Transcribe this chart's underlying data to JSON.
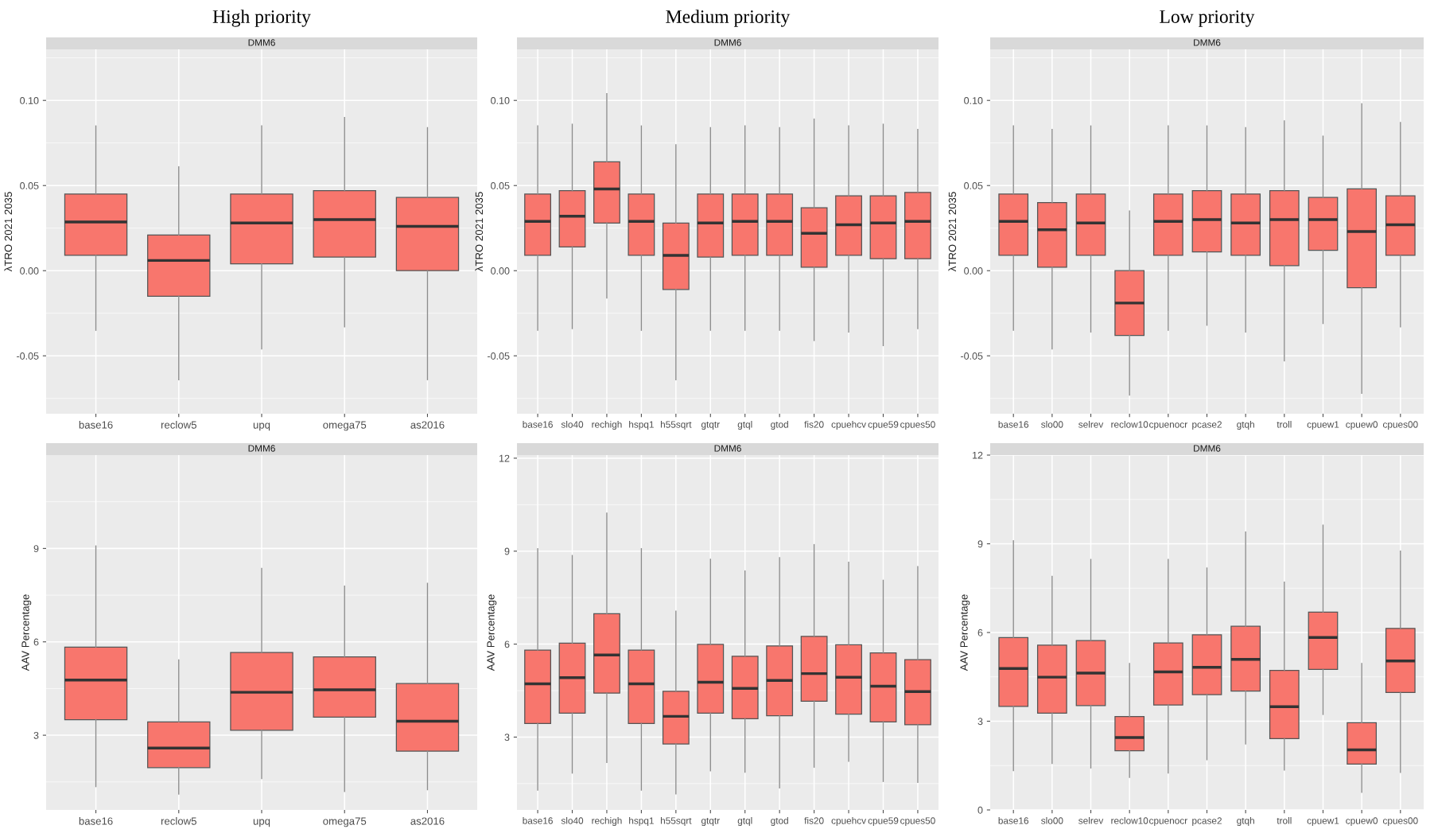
{
  "chart_data": [
    {
      "type": "box",
      "title": "High priority",
      "subtitle": "DMM6",
      "ylabel": "λTRO 2021 2035",
      "ylim": [
        -0.084,
        0.13
      ],
      "yticks": [
        {
          "value": -0.05,
          "label": "-0.05"
        },
        {
          "value": 0,
          "label": "0.00"
        },
        {
          "value": 0.05,
          "label": "0.05"
        },
        {
          "value": 0.1,
          "label": "0.10"
        }
      ],
      "grid": true,
      "color": "#f8766d",
      "categories": [
        "base16",
        "reclow5",
        "upq",
        "omega75",
        "as2016"
      ],
      "boxes": [
        {
          "low": -0.035,
          "q1": 0.009,
          "median": 0.0286,
          "q3": 0.045,
          "high": 0.085
        },
        {
          "low": -0.064,
          "q1": -0.015,
          "median": 0.006,
          "q3": 0.021,
          "high": 0.061
        },
        {
          "low": -0.046,
          "q1": 0.004,
          "median": 0.028,
          "q3": 0.045,
          "high": 0.085
        },
        {
          "low": -0.033,
          "q1": 0.008,
          "median": 0.03,
          "q3": 0.047,
          "high": 0.09
        },
        {
          "low": -0.064,
          "q1": 0.0,
          "median": 0.026,
          "q3": 0.043,
          "high": 0.084
        }
      ]
    },
    {
      "type": "box",
      "title": "Medium priority",
      "subtitle": "DMM6",
      "ylabel": "λTRO 2021 2035",
      "ylim": [
        -0.084,
        0.13
      ],
      "yticks": [
        {
          "value": -0.05,
          "label": "-0.05"
        },
        {
          "value": 0,
          "label": "0.00"
        },
        {
          "value": 0.05,
          "label": "0.05"
        },
        {
          "value": 0.1,
          "label": "0.10"
        }
      ],
      "grid": true,
      "color": "#f8766d",
      "categories": [
        "base16",
        "slo40",
        "rechigh",
        "hspq1",
        "h55sqrt",
        "gtqtr",
        "gtql",
        "gtod",
        "fis20",
        "cpuehcv",
        "cpue59",
        "cpues50"
      ],
      "boxes": [
        {
          "low": -0.035,
          "q1": 0.009,
          "median": 0.029,
          "q3": 0.045,
          "high": 0.085
        },
        {
          "low": -0.034,
          "q1": 0.014,
          "median": 0.032,
          "q3": 0.047,
          "high": 0.086
        },
        {
          "low": -0.016,
          "q1": 0.028,
          "median": 0.048,
          "q3": 0.064,
          "high": 0.104
        },
        {
          "low": -0.035,
          "q1": 0.009,
          "median": 0.029,
          "q3": 0.045,
          "high": 0.085
        },
        {
          "low": -0.064,
          "q1": -0.011,
          "median": 0.009,
          "q3": 0.028,
          "high": 0.074
        },
        {
          "low": -0.035,
          "q1": 0.008,
          "median": 0.028,
          "q3": 0.045,
          "high": 0.084
        },
        {
          "low": -0.035,
          "q1": 0.009,
          "median": 0.029,
          "q3": 0.045,
          "high": 0.085
        },
        {
          "low": -0.035,
          "q1": 0.009,
          "median": 0.029,
          "q3": 0.045,
          "high": 0.084
        },
        {
          "low": -0.041,
          "q1": 0.002,
          "median": 0.022,
          "q3": 0.037,
          "high": 0.089
        },
        {
          "low": -0.036,
          "q1": 0.009,
          "median": 0.027,
          "q3": 0.044,
          "high": 0.085
        },
        {
          "low": -0.044,
          "q1": 0.007,
          "median": 0.028,
          "q3": 0.044,
          "high": 0.086
        },
        {
          "low": -0.034,
          "q1": 0.007,
          "median": 0.029,
          "q3": 0.046,
          "high": 0.083
        }
      ]
    },
    {
      "type": "box",
      "title": "Low priority",
      "subtitle": "DMM6",
      "ylabel": "λTRO 2021 2035",
      "ylim": [
        -0.084,
        0.13
      ],
      "yticks": [
        {
          "value": -0.05,
          "label": "-0.05"
        },
        {
          "value": 0,
          "label": "0.00"
        },
        {
          "value": 0.05,
          "label": "0.05"
        },
        {
          "value": 0.1,
          "label": "0.10"
        }
      ],
      "grid": true,
      "color": "#f8766d",
      "categories": [
        "base16",
        "slo00",
        "selrev",
        "reclow10",
        "cpuenocr",
        "pcase2",
        "gtqh",
        "troll",
        "cpuew1",
        "cpuew0",
        "cpues00"
      ],
      "boxes": [
        {
          "low": -0.035,
          "q1": 0.009,
          "median": 0.029,
          "q3": 0.045,
          "high": 0.085
        },
        {
          "low": -0.046,
          "q1": 0.002,
          "median": 0.024,
          "q3": 0.04,
          "high": 0.083
        },
        {
          "low": -0.036,
          "q1": 0.009,
          "median": 0.028,
          "q3": 0.045,
          "high": 0.085
        },
        {
          "low": -0.073,
          "q1": -0.038,
          "median": -0.019,
          "q3": 0.0,
          "high": 0.035
        },
        {
          "low": -0.035,
          "q1": 0.009,
          "median": 0.029,
          "q3": 0.045,
          "high": 0.085
        },
        {
          "low": -0.032,
          "q1": 0.011,
          "median": 0.03,
          "q3": 0.047,
          "high": 0.085
        },
        {
          "low": -0.036,
          "q1": 0.009,
          "median": 0.028,
          "q3": 0.045,
          "high": 0.084
        },
        {
          "low": -0.053,
          "q1": 0.003,
          "median": 0.03,
          "q3": 0.047,
          "high": 0.088
        },
        {
          "low": -0.031,
          "q1": 0.012,
          "median": 0.03,
          "q3": 0.043,
          "high": 0.079
        },
        {
          "low": -0.072,
          "q1": -0.01,
          "median": 0.023,
          "q3": 0.048,
          "high": 0.098
        },
        {
          "low": -0.033,
          "q1": 0.009,
          "median": 0.027,
          "q3": 0.044,
          "high": 0.087
        }
      ]
    },
    {
      "type": "box",
      "subtitle": "DMM6",
      "ylabel": "AAV Percentage",
      "ylim": [
        0.6,
        12
      ],
      "yticks": [
        3,
        6,
        9
      ],
      "grid": true,
      "color": "#f8766d",
      "categories": [
        "base16",
        "reclow5",
        "upq",
        "omega75",
        "as2016"
      ],
      "boxes": [
        {
          "low": 1.35,
          "q1": 3.5,
          "median": 4.77,
          "q3": 5.83,
          "high": 9.08
        },
        {
          "low": 1.11,
          "q1": 1.96,
          "median": 2.59,
          "q3": 3.43,
          "high": 5.42
        },
        {
          "low": 1.61,
          "q1": 3.16,
          "median": 4.38,
          "q3": 5.66,
          "high": 8.36
        },
        {
          "low": 1.19,
          "q1": 3.58,
          "median": 4.46,
          "q3": 5.52,
          "high": 7.79
        },
        {
          "low": 1.25,
          "q1": 2.49,
          "median": 3.45,
          "q3": 4.66,
          "high": 7.88
        }
      ]
    },
    {
      "type": "box",
      "subtitle": "DMM6",
      "ylabel": "AAV Percentage",
      "ylim": [
        0.65,
        12.1
      ],
      "yticks": [
        3,
        6,
        9,
        12
      ],
      "grid": true,
      "color": "#f8766d",
      "categories": [
        "base16",
        "slo40",
        "rechigh",
        "hspq1",
        "h55sqrt",
        "gtqtr",
        "gtql",
        "gtod",
        "fis20",
        "cpuehcv",
        "cpue59",
        "cpues50"
      ],
      "boxes": [
        {
          "low": 1.29,
          "q1": 3.44,
          "median": 4.72,
          "q3": 5.81,
          "high": 9.08
        },
        {
          "low": 1.84,
          "q1": 3.77,
          "median": 4.92,
          "q3": 6.03,
          "high": 8.86
        },
        {
          "low": 2.18,
          "q1": 4.42,
          "median": 5.65,
          "q3": 6.98,
          "high": 10.23
        },
        {
          "low": 1.29,
          "q1": 3.44,
          "median": 4.72,
          "q3": 5.81,
          "high": 9.08
        },
        {
          "low": 1.17,
          "q1": 2.78,
          "median": 3.67,
          "q3": 4.48,
          "high": 7.06
        },
        {
          "low": 1.91,
          "q1": 3.77,
          "median": 4.77,
          "q3": 5.99,
          "high": 8.74
        },
        {
          "low": 1.87,
          "q1": 3.59,
          "median": 4.57,
          "q3": 5.61,
          "high": 8.36
        },
        {
          "low": 1.36,
          "q1": 3.69,
          "median": 4.83,
          "q3": 5.94,
          "high": 8.79
        },
        {
          "low": 2.03,
          "q1": 4.16,
          "median": 5.05,
          "q3": 6.25,
          "high": 9.21
        },
        {
          "low": 2.22,
          "q1": 3.74,
          "median": 4.93,
          "q3": 5.98,
          "high": 8.64
        },
        {
          "low": 1.57,
          "q1": 3.49,
          "median": 4.64,
          "q3": 5.72,
          "high": 8.06
        },
        {
          "low": 1.54,
          "q1": 3.4,
          "median": 4.47,
          "q3": 5.5,
          "high": 8.5
        }
      ]
    },
    {
      "type": "box",
      "subtitle": "DMM6",
      "ylabel": "AAV Percentage",
      "ylim": [
        0,
        12
      ],
      "yticks": [
        0,
        3,
        6,
        9,
        12
      ],
      "grid": true,
      "color": "#f8766d",
      "categories": [
        "base16",
        "slo00",
        "selrev",
        "reclow10",
        "cpuenocr",
        "pcase2",
        "gtqh",
        "troll",
        "cpuew1",
        "cpuew0",
        "cpues00"
      ],
      "boxes": [
        {
          "low": 1.33,
          "q1": 3.5,
          "median": 4.78,
          "q3": 5.83,
          "high": 9.1
        },
        {
          "low": 1.57,
          "q1": 3.27,
          "median": 4.49,
          "q3": 5.57,
          "high": 7.9
        },
        {
          "low": 1.42,
          "q1": 3.53,
          "median": 4.63,
          "q3": 5.73,
          "high": 8.47
        },
        {
          "low": 1.1,
          "q1": 2.0,
          "median": 2.45,
          "q3": 3.16,
          "high": 4.95
        },
        {
          "low": 1.25,
          "q1": 3.55,
          "median": 4.67,
          "q3": 5.65,
          "high": 8.47
        },
        {
          "low": 1.7,
          "q1": 3.9,
          "median": 4.82,
          "q3": 5.92,
          "high": 8.18
        },
        {
          "low": 2.23,
          "q1": 4.02,
          "median": 5.09,
          "q3": 6.21,
          "high": 9.4
        },
        {
          "low": 1.35,
          "q1": 2.41,
          "median": 3.49,
          "q3": 4.72,
          "high": 7.7
        },
        {
          "low": 3.23,
          "q1": 4.75,
          "median": 5.83,
          "q3": 6.69,
          "high": 9.63
        },
        {
          "low": 0.6,
          "q1": 1.55,
          "median": 2.03,
          "q3": 2.95,
          "high": 4.95
        },
        {
          "low": 1.27,
          "q1": 3.97,
          "median": 5.04,
          "q3": 6.14,
          "high": 8.75
        }
      ]
    }
  ]
}
